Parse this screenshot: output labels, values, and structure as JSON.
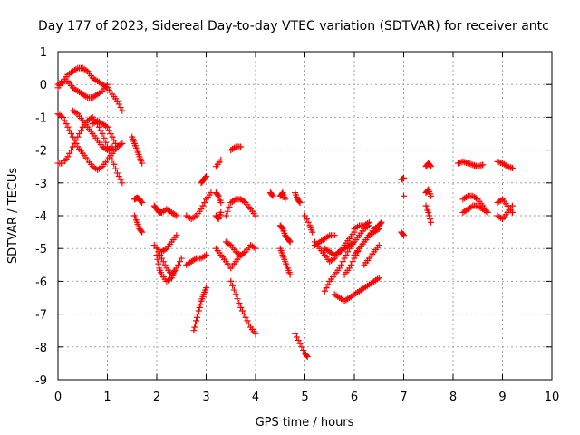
{
  "chart_data": {
    "type": "scatter",
    "title": "Day 177 of 2023, Sidereal Day-to-day VTEC variation (SDTVAR) for receiver antc",
    "xlabel": "GPS time / hours",
    "ylabel": "SDTVAR / TECUs",
    "xlim": [
      0,
      10
    ],
    "ylim": [
      -9,
      1
    ],
    "xticks": [
      "0",
      "1",
      "2",
      "3",
      "4",
      "5",
      "6",
      "7",
      "8",
      "9",
      "10"
    ],
    "yticks": [
      "1",
      "0",
      "-1",
      "-2",
      "-3",
      "-4",
      "-5",
      "-6",
      "-7",
      "-8",
      "-9"
    ],
    "grid": true,
    "marker": "+",
    "color": "#ff0000",
    "series": [
      {
        "x": [
          0.0,
          0.1,
          0.2,
          0.3,
          0.4,
          0.5,
          0.6,
          0.7,
          0.8,
          0.9,
          1.0,
          1.1,
          1.2,
          1.3
        ],
        "y": [
          -0.1,
          0.1,
          0.3,
          0.4,
          0.5,
          0.5,
          0.4,
          0.2,
          0.1,
          0.0,
          -0.1,
          -0.3,
          -0.5,
          -0.8
        ]
      },
      {
        "x": [
          0.0,
          0.1,
          0.2,
          0.3,
          0.4,
          0.5,
          0.6,
          0.7,
          0.8,
          0.9,
          1.0
        ],
        "y": [
          0.0,
          0.1,
          0.1,
          -0.1,
          -0.2,
          -0.3,
          -0.4,
          -0.4,
          -0.3,
          -0.2,
          0.0
        ]
      },
      {
        "x": [
          0.0,
          0.1,
          0.2,
          0.3,
          0.4,
          0.5,
          0.6,
          0.7,
          0.8,
          0.9,
          1.0,
          1.1,
          1.2,
          1.3
        ],
        "y": [
          -0.9,
          -1.0,
          -1.3,
          -1.6,
          -1.9,
          -2.1,
          -2.3,
          -2.5,
          -2.6,
          -2.5,
          -2.3,
          -2.1,
          -1.9,
          -1.8
        ]
      },
      {
        "x": [
          0.0,
          0.1,
          0.2,
          0.3,
          0.4,
          0.5,
          0.6,
          0.7,
          0.8,
          0.9,
          1.0,
          1.1,
          1.2,
          1.3
        ],
        "y": [
          -2.4,
          -2.4,
          -2.2,
          -1.9,
          -1.6,
          -1.3,
          -1.1,
          -1.0,
          -1.2,
          -1.5,
          -1.9,
          -2.3,
          -2.7,
          -3.0
        ]
      },
      {
        "x": [
          0.3,
          0.4,
          0.5,
          0.6,
          0.7,
          0.8,
          0.9,
          1.0,
          1.1
        ],
        "y": [
          -0.8,
          -0.9,
          -1.1,
          -1.3,
          -1.5,
          -1.7,
          -1.9,
          -2.0,
          -1.9
        ]
      },
      {
        "x": [
          0.7,
          0.8,
          0.9,
          1.0,
          1.1,
          1.2
        ],
        "y": [
          -1.2,
          -1.1,
          -1.2,
          -1.3,
          -1.6,
          -1.9
        ]
      },
      {
        "x": [
          1.5,
          1.55,
          1.6,
          1.65,
          1.7
        ],
        "y": [
          -1.6,
          -1.8,
          -2.0,
          -2.2,
          -2.4
        ]
      },
      {
        "x": [
          1.55,
          1.6,
          1.65,
          1.7
        ],
        "y": [
          -3.5,
          -3.45,
          -3.5,
          -3.6
        ]
      },
      {
        "x": [
          1.55,
          1.6,
          1.65,
          1.7
        ],
        "y": [
          -4.0,
          -4.2,
          -4.4,
          -4.5
        ]
      },
      {
        "x": [
          1.95,
          2.0,
          2.05,
          2.1,
          2.2,
          2.3,
          2.4
        ],
        "y": [
          -3.7,
          -3.8,
          -3.9,
          -3.9,
          -3.8,
          -3.9,
          -4.0
        ]
      },
      {
        "x": [
          2.0,
          2.05,
          2.1,
          2.2,
          2.3,
          2.35
        ],
        "y": [
          -5.2,
          -5.6,
          -5.8,
          -6.0,
          -5.9,
          -5.7
        ]
      },
      {
        "x": [
          2.0,
          2.1,
          2.2,
          2.3,
          2.4,
          2.5
        ],
        "y": [
          -5.0,
          -5.3,
          -5.6,
          -5.8,
          -5.6,
          -5.3
        ]
      },
      {
        "x": [
          1.95,
          2.1,
          2.2,
          2.3,
          2.4
        ],
        "y": [
          -4.9,
          -5.1,
          -5.0,
          -4.8,
          -4.6
        ]
      },
      {
        "x": [
          2.6,
          2.7,
          2.8,
          2.9,
          3.0,
          3.1
        ],
        "y": [
          -4.0,
          -4.1,
          -4.0,
          -3.8,
          -3.5,
          -3.3
        ]
      },
      {
        "x": [
          2.75,
          2.8,
          2.85,
          2.9,
          2.95,
          3.0
        ],
        "y": [
          -7.5,
          -7.2,
          -6.9,
          -6.6,
          -6.4,
          -6.2
        ]
      },
      {
        "x": [
          2.6,
          2.7,
          2.8,
          2.9,
          3.0
        ],
        "y": [
          -5.5,
          -5.4,
          -5.3,
          -5.3,
          -5.2
        ]
      },
      {
        "x": [
          2.9,
          2.95,
          3.0
        ],
        "y": [
          -3.0,
          -2.9,
          -2.8
        ]
      },
      {
        "x": [
          3.2,
          3.3
        ],
        "y": [
          -2.5,
          -2.3
        ]
      },
      {
        "x": [
          3.5,
          3.6,
          3.7
        ],
        "y": [
          -2.0,
          -1.9,
          -1.9
        ]
      },
      {
        "x": [
          3.4,
          3.5,
          3.6,
          3.7,
          3.8,
          3.9,
          4.0
        ],
        "y": [
          -4.0,
          -3.6,
          -3.5,
          -3.5,
          -3.6,
          -3.8,
          -4.0
        ]
      },
      {
        "x": [
          3.4,
          3.5,
          3.6,
          3.7,
          3.8,
          3.9,
          4.0
        ],
        "y": [
          -4.8,
          -4.9,
          -5.1,
          -5.2,
          -5.1,
          -4.9,
          -5.0
        ]
      },
      {
        "x": [
          3.5,
          3.6,
          3.7,
          3.8,
          3.9,
          4.0
        ],
        "y": [
          -6.0,
          -6.4,
          -6.8,
          -7.1,
          -7.4,
          -7.6
        ]
      },
      {
        "x": [
          3.2,
          3.25,
          3.3
        ],
        "y": [
          -3.3,
          -3.4,
          -3.6
        ]
      },
      {
        "x": [
          3.2,
          3.25,
          3.3
        ],
        "y": [
          -4.0,
          -4.1,
          -3.9
        ]
      },
      {
        "x": [
          3.2,
          3.3,
          3.4,
          3.5,
          3.6,
          3.7
        ],
        "y": [
          -5.0,
          -5.2,
          -5.4,
          -5.6,
          -5.4,
          -5.2
        ]
      },
      {
        "x": [
          4.3,
          4.35
        ],
        "y": [
          -3.3,
          -3.4
        ]
      },
      {
        "x": [
          4.5,
          4.55,
          4.6,
          4.65,
          4.7
        ],
        "y": [
          -5.0,
          -5.2,
          -5.4,
          -5.6,
          -5.8
        ]
      },
      {
        "x": [
          4.5,
          4.55,
          4.6,
          4.65,
          4.7
        ],
        "y": [
          -4.3,
          -4.4,
          -4.6,
          -4.7,
          -4.8
        ]
      },
      {
        "x": [
          4.5,
          4.55,
          4.6
        ],
        "y": [
          -3.4,
          -3.3,
          -3.5
        ]
      },
      {
        "x": [
          4.8,
          4.85,
          4.9
        ],
        "y": [
          -3.3,
          -3.5,
          -3.6
        ]
      },
      {
        "x": [
          5.0,
          5.1,
          5.15
        ],
        "y": [
          -4.0,
          -4.3,
          -4.5
        ]
      },
      {
        "x": [
          4.8,
          4.9,
          5.0,
          5.05
        ],
        "y": [
          -7.6,
          -7.9,
          -8.2,
          -8.3
        ]
      },
      {
        "x": [
          5.2,
          5.3,
          5.4,
          5.5,
          5.6,
          5.7,
          5.8,
          5.9,
          6.0
        ],
        "y": [
          -4.8,
          -5.0,
          -5.2,
          -5.4,
          -5.3,
          -5.1,
          -4.9,
          -4.7,
          -4.5
        ]
      },
      {
        "x": [
          5.4,
          5.5,
          5.6,
          5.7,
          5.8,
          5.9,
          6.0,
          6.1,
          6.2,
          6.3
        ],
        "y": [
          -6.3,
          -6.0,
          -5.8,
          -5.6,
          -5.3,
          -5.0,
          -4.8,
          -4.6,
          -4.4,
          -4.3
        ]
      },
      {
        "x": [
          5.6,
          5.7,
          5.8,
          5.9,
          6.0,
          6.1,
          6.2,
          6.3,
          6.4,
          6.5
        ],
        "y": [
          -6.4,
          -6.5,
          -6.6,
          -6.5,
          -6.4,
          -6.3,
          -6.2,
          -6.1,
          -6.0,
          -5.9
        ]
      },
      {
        "x": [
          5.2,
          5.3,
          5.4,
          5.5,
          5.6
        ],
        "y": [
          -4.9,
          -4.8,
          -4.7,
          -4.6,
          -4.6
        ]
      },
      {
        "x": [
          5.8,
          5.9,
          6.0,
          6.1,
          6.2,
          6.3,
          6.4,
          6.5
        ],
        "y": [
          -5.8,
          -5.6,
          -5.3,
          -5.0,
          -4.8,
          -4.6,
          -4.4,
          -4.3
        ]
      },
      {
        "x": [
          6.0,
          6.1,
          6.2,
          6.3,
          6.4,
          6.5
        ],
        "y": [
          -5.2,
          -5.0,
          -4.8,
          -4.6,
          -4.5,
          -4.4
        ]
      },
      {
        "x": [
          5.4,
          5.5,
          5.6,
          5.7,
          5.8,
          5.9,
          6.0
        ],
        "y": [
          -5.0,
          -5.1,
          -5.2,
          -5.1,
          -5.0,
          -4.9,
          -4.8
        ]
      },
      {
        "x": [
          6.0,
          6.1,
          6.2,
          6.3
        ],
        "y": [
          -4.4,
          -4.3,
          -4.3,
          -4.2
        ]
      },
      {
        "x": [
          6.2,
          6.3,
          6.4,
          6.5
        ],
        "y": [
          -5.5,
          -5.3,
          -5.1,
          -4.9
        ]
      },
      {
        "x": [
          6.5,
          6.55
        ],
        "y": [
          -4.3,
          -4.2
        ]
      },
      {
        "x": [
          6.95,
          7.0
        ],
        "y": [
          -2.9,
          -2.85
        ]
      },
      {
        "x": [
          6.95,
          7.0
        ],
        "y": [
          -4.5,
          -4.6
        ]
      },
      {
        "x": [
          7.0
        ],
        "y": [
          -3.4
        ]
      },
      {
        "x": [
          7.45,
          7.5,
          7.55
        ],
        "y": [
          -2.5,
          -2.4,
          -2.5
        ]
      },
      {
        "x": [
          7.45,
          7.5,
          7.55
        ],
        "y": [
          -3.3,
          -3.2,
          -3.4
        ]
      },
      {
        "x": [
          7.45,
          7.5,
          7.55
        ],
        "y": [
          -3.7,
          -3.9,
          -4.2
        ]
      },
      {
        "x": [
          8.1,
          8.2,
          8.3,
          8.4,
          8.5,
          8.6
        ],
        "y": [
          -2.4,
          -2.35,
          -2.4,
          -2.45,
          -2.5,
          -2.45
        ]
      },
      {
        "x": [
          8.2,
          8.3,
          8.4,
          8.5,
          8.6,
          8.7
        ],
        "y": [
          -3.5,
          -3.4,
          -3.4,
          -3.5,
          -3.7,
          -3.9
        ]
      },
      {
        "x": [
          8.2,
          8.3,
          8.4,
          8.5,
          8.6,
          8.7
        ],
        "y": [
          -3.9,
          -3.8,
          -3.7,
          -3.7,
          -3.8,
          -3.9
        ]
      },
      {
        "x": [
          8.9,
          9.0,
          9.1,
          9.2
        ],
        "y": [
          -2.35,
          -2.4,
          -2.5,
          -2.55
        ]
      },
      {
        "x": [
          8.9,
          9.0,
          9.1,
          9.2
        ],
        "y": [
          -3.6,
          -3.5,
          -3.7,
          -3.9
        ]
      },
      {
        "x": [
          8.9,
          9.0,
          9.1,
          9.2
        ],
        "y": [
          -4.0,
          -4.1,
          -3.9,
          -3.7
        ]
      }
    ]
  }
}
